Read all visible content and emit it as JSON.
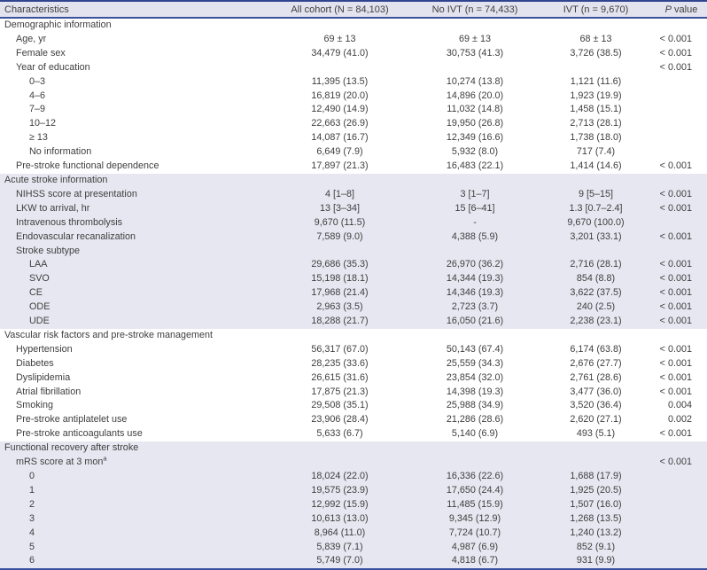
{
  "colors": {
    "border_blue": "#3a519f",
    "border_blue_dark": "#2f458f",
    "header_bg": "#e3e3ef",
    "band_bg": "#e7e7f1",
    "text": "#3e3e3e",
    "page_bg": "#ffffff"
  },
  "table": {
    "columns": [
      {
        "key": "characteristics",
        "label": "Characteristics"
      },
      {
        "key": "all-cohort",
        "label": "All cohort (N = 84,103)"
      },
      {
        "key": "no-ivt",
        "label": "No IVT (n = 74,433)"
      },
      {
        "key": "ivt",
        "label": "IVT (n = 9,670)"
      },
      {
        "key": "p-value",
        "label": "P value",
        "italic_first": true
      }
    ],
    "rows": [
      {
        "label": "Demographic information",
        "indent": 0,
        "shaded": false,
        "values": [
          "",
          "",
          "",
          ""
        ]
      },
      {
        "label": "Age, yr",
        "indent": 1,
        "shaded": false,
        "values": [
          "69 ± 13",
          "69 ± 13",
          "68 ± 13",
          "< 0.001"
        ]
      },
      {
        "label": "Female sex",
        "indent": 1,
        "shaded": false,
        "values": [
          "34,479 (41.0)",
          "30,753 (41.3)",
          "3,726 (38.5)",
          "< 0.001"
        ]
      },
      {
        "label": "Year of education",
        "indent": 1,
        "shaded": false,
        "values": [
          "",
          "",
          "",
          "< 0.001"
        ]
      },
      {
        "label": "0–3",
        "indent": 2,
        "shaded": false,
        "values": [
          "11,395 (13.5)",
          "10,274 (13.8)",
          "1,121 (11.6)",
          ""
        ]
      },
      {
        "label": "4–6",
        "indent": 2,
        "shaded": false,
        "values": [
          "16,819 (20.0)",
          "14,896 (20.0)",
          "1,923 (19.9)",
          ""
        ]
      },
      {
        "label": "7–9",
        "indent": 2,
        "shaded": false,
        "values": [
          "12,490 (14.9)",
          "11,032 (14.8)",
          "1,458 (15.1)",
          ""
        ]
      },
      {
        "label": "10–12",
        "indent": 2,
        "shaded": false,
        "values": [
          "22,663 (26.9)",
          "19,950 (26.8)",
          "2,713 (28.1)",
          ""
        ]
      },
      {
        "label": "≥ 13",
        "indent": 2,
        "shaded": false,
        "values": [
          "14,087 (16.7)",
          "12,349 (16.6)",
          "1,738 (18.0)",
          ""
        ]
      },
      {
        "label": "No information",
        "indent": 2,
        "shaded": false,
        "values": [
          "6,649 (7.9)",
          "5,932 (8.0)",
          "717 (7.4)",
          ""
        ]
      },
      {
        "label": "Pre-stroke functional dependence",
        "indent": 1,
        "shaded": false,
        "values": [
          "17,897 (21.3)",
          "16,483 (22.1)",
          "1,414 (14.6)",
          "< 0.001"
        ]
      },
      {
        "label": "Acute stroke information",
        "indent": 0,
        "shaded": true,
        "values": [
          "",
          "",
          "",
          ""
        ]
      },
      {
        "label": "NIHSS score at presentation",
        "indent": 1,
        "shaded": true,
        "values": [
          "4 [1–8]",
          "3 [1–7]",
          "9 [5–15]",
          "< 0.001"
        ]
      },
      {
        "label": "LKW to arrival, hr",
        "indent": 1,
        "shaded": true,
        "values": [
          "13 [3–34]",
          "15 [6–41]",
          "1.3 [0.7–2.4]",
          "< 0.001"
        ]
      },
      {
        "label": "Intravenous thrombolysis",
        "indent": 1,
        "shaded": true,
        "values": [
          "9,670 (11.5)",
          "-",
          "9,670 (100.0)",
          ""
        ]
      },
      {
        "label": "Endovascular recanalization",
        "indent": 1,
        "shaded": true,
        "values": [
          "7,589 (9.0)",
          "4,388 (5.9)",
          "3,201 (33.1)",
          "< 0.001"
        ]
      },
      {
        "label": "Stroke subtype",
        "indent": 1,
        "shaded": true,
        "values": [
          "",
          "",
          "",
          ""
        ]
      },
      {
        "label": "LAA",
        "indent": 2,
        "shaded": true,
        "values": [
          "29,686 (35.3)",
          "26,970 (36.2)",
          "2,716 (28.1)",
          "< 0.001"
        ]
      },
      {
        "label": "SVO",
        "indent": 2,
        "shaded": true,
        "values": [
          "15,198 (18.1)",
          "14,344 (19.3)",
          "854 (8.8)",
          "< 0.001"
        ]
      },
      {
        "label": "CE",
        "indent": 2,
        "shaded": true,
        "values": [
          "17,968 (21.4)",
          "14,346 (19.3)",
          "3,622 (37.5)",
          "< 0.001"
        ]
      },
      {
        "label": "ODE",
        "indent": 2,
        "shaded": true,
        "values": [
          "2,963 (3.5)",
          "2,723 (3.7)",
          "240 (2.5)",
          "< 0.001"
        ]
      },
      {
        "label": "UDE",
        "indent": 2,
        "shaded": true,
        "values": [
          "18,288 (21.7)",
          "16,050 (21.6)",
          "2,238 (23.1)",
          "< 0.001"
        ]
      },
      {
        "label": "Vascular risk factors and pre-stroke management",
        "indent": 0,
        "shaded": false,
        "values": [
          "",
          "",
          "",
          ""
        ]
      },
      {
        "label": "Hypertension",
        "indent": 1,
        "shaded": false,
        "values": [
          "56,317 (67.0)",
          "50,143 (67.4)",
          "6,174 (63.8)",
          "< 0.001"
        ]
      },
      {
        "label": "Diabetes",
        "indent": 1,
        "shaded": false,
        "values": [
          "28,235 (33.6)",
          "25,559 (34.3)",
          "2,676 (27.7)",
          "< 0.001"
        ]
      },
      {
        "label": "Dyslipidemia",
        "indent": 1,
        "shaded": false,
        "values": [
          "26,615 (31.6)",
          "23,854 (32.0)",
          "2,761 (28.6)",
          "< 0.001"
        ]
      },
      {
        "label": "Atrial fibrillation",
        "indent": 1,
        "shaded": false,
        "values": [
          "17,875 (21.3)",
          "14,398 (19.3)",
          "3,477 (36.0)",
          "< 0.001"
        ]
      },
      {
        "label": "Smoking",
        "indent": 1,
        "shaded": false,
        "values": [
          "29,508 (35.1)",
          "25,988 (34.9)",
          "3,520 (36.4)",
          "0.004"
        ]
      },
      {
        "label": "Pre-stroke antiplatelet use",
        "indent": 1,
        "shaded": false,
        "values": [
          "23,906 (28.4)",
          "21,286 (28.6)",
          "2,620 (27.1)",
          "0.002"
        ]
      },
      {
        "label": "Pre-stroke anticoagulants use",
        "indent": 1,
        "shaded": false,
        "values": [
          "5,633 (6.7)",
          "5,140 (6.9)",
          "493 (5.1)",
          "< 0.001"
        ]
      },
      {
        "label": "Functional recovery after stroke",
        "indent": 0,
        "shaded": true,
        "values": [
          "",
          "",
          "",
          ""
        ]
      },
      {
        "label": "mRS score at 3 mon",
        "sup": "a",
        "indent": 1,
        "shaded": true,
        "values": [
          "",
          "",
          "",
          "< 0.001"
        ]
      },
      {
        "label": "0",
        "indent": 2,
        "shaded": true,
        "values": [
          "18,024 (22.0)",
          "16,336 (22.6)",
          "1,688 (17.9)",
          ""
        ]
      },
      {
        "label": "1",
        "indent": 2,
        "shaded": true,
        "values": [
          "19,575 (23.9)",
          "17,650 (24.4)",
          "1,925 (20.5)",
          ""
        ]
      },
      {
        "label": "2",
        "indent": 2,
        "shaded": true,
        "values": [
          "12,992 (15.9)",
          "11,485 (15.9)",
          "1,507 (16.0)",
          ""
        ]
      },
      {
        "label": "3",
        "indent": 2,
        "shaded": true,
        "values": [
          "10,613 (13.0)",
          "9,345 (12.9)",
          "1,268 (13.5)",
          ""
        ]
      },
      {
        "label": "4",
        "indent": 2,
        "shaded": true,
        "values": [
          "8,964 (11.0)",
          "7,724 (10.7)",
          "1,240 (13.2)",
          ""
        ]
      },
      {
        "label": "5",
        "indent": 2,
        "shaded": true,
        "values": [
          "5,839 (7.1)",
          "4,987 (6.9)",
          "852 (9.1)",
          ""
        ]
      },
      {
        "label": "6",
        "indent": 2,
        "shaded": true,
        "values": [
          "5,749 (7.0)",
          "4,818 (6.7)",
          "931 (9.9)",
          ""
        ]
      }
    ]
  }
}
